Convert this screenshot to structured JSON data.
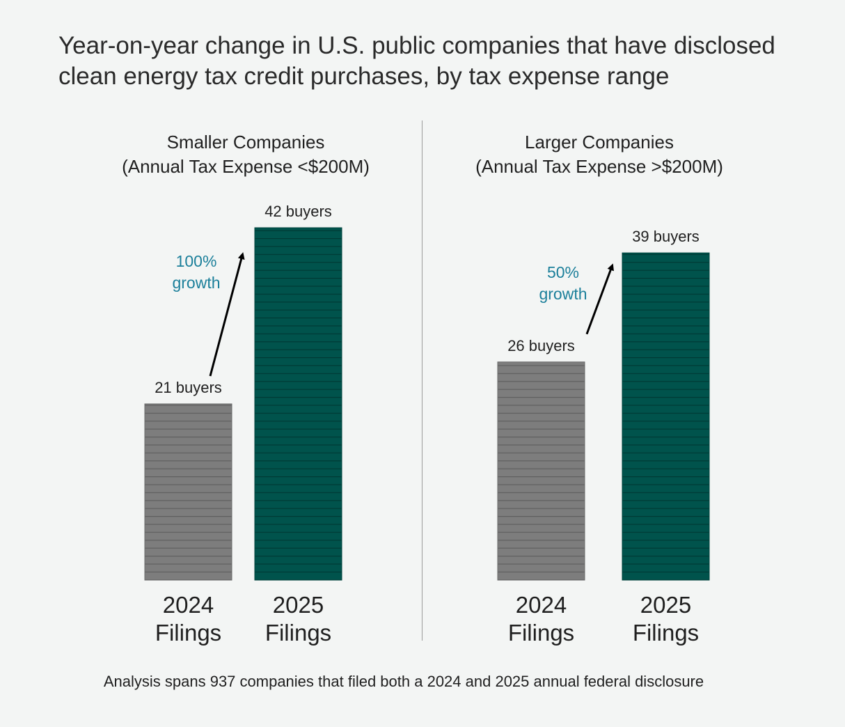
{
  "title_line1": "Year-on-year change in U.S. public companies that have disclosed",
  "title_line2": "clean energy tax credit purchases, by tax expense range",
  "footnote": "Analysis spans 937 companies that filed both a 2024 and 2025 annual federal disclosure",
  "colors": {
    "filings_2024": "#7d7d7d",
    "filings_2025": "#00534c",
    "growth": "#1b7f9a"
  },
  "chart_data": [
    {
      "type": "bar",
      "title_line1": "Smaller Companies",
      "title_line2": "(Annual Tax Expense <$200M)",
      "categories": [
        [
          "2024",
          "Filings"
        ],
        [
          "2025",
          "Filings"
        ]
      ],
      "values": [
        21,
        42
      ],
      "value_labels": [
        "21 buyers",
        "42 buyers"
      ],
      "growth_line1": "100%",
      "growth_line2": "growth",
      "ylim": [
        0,
        42
      ]
    },
    {
      "type": "bar",
      "title_line1": "Larger Companies",
      "title_line2": "(Annual Tax Expense >$200M)",
      "categories": [
        [
          "2024",
          "Filings"
        ],
        [
          "2025",
          "Filings"
        ]
      ],
      "values": [
        26,
        39
      ],
      "value_labels": [
        "26 buyers",
        "39 buyers"
      ],
      "growth_line1": "50%",
      "growth_line2": "growth",
      "ylim": [
        0,
        42
      ]
    }
  ]
}
